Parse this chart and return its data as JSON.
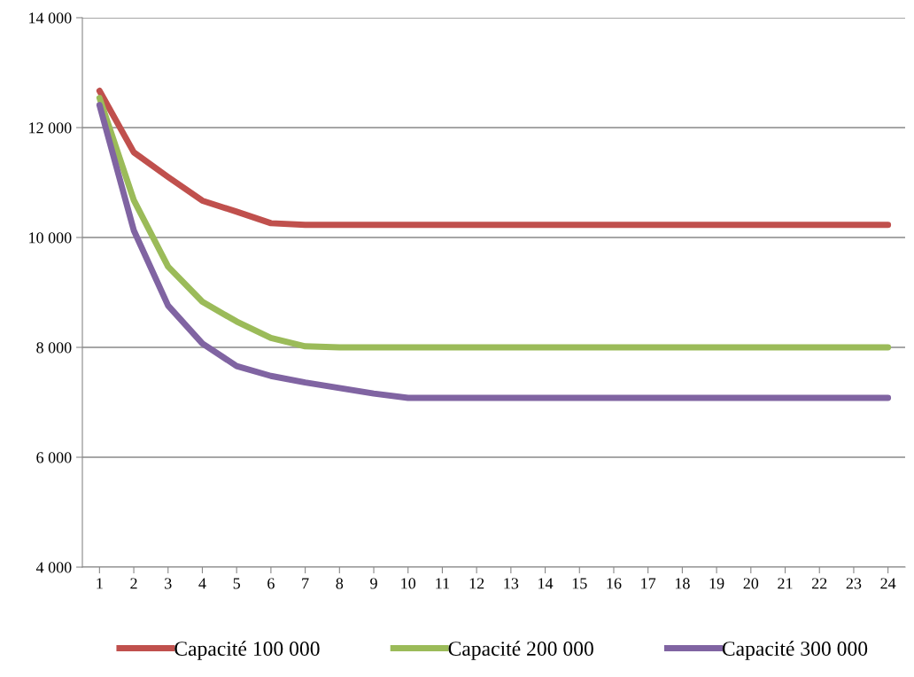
{
  "chart_data": {
    "type": "line",
    "categories": [
      "1",
      "2",
      "3",
      "4",
      "5",
      "6",
      "7",
      "8",
      "9",
      "10",
      "11",
      "12",
      "13",
      "14",
      "15",
      "16",
      "17",
      "18",
      "19",
      "20",
      "21",
      "22",
      "23",
      "24"
    ],
    "series": [
      {
        "name": "Capacité 100 000",
        "color": "#c0504d",
        "values": [
          12670,
          11550,
          11100,
          10670,
          10470,
          10260,
          10230,
          10230,
          10230,
          10230,
          10230,
          10230,
          10230,
          10230,
          10230,
          10230,
          10230,
          10230,
          10230,
          10230,
          10230,
          10230,
          10230,
          10230
        ]
      },
      {
        "name": "Capacité 200 000",
        "color": "#9bbb59",
        "values": [
          12540,
          10680,
          9470,
          8830,
          8470,
          8170,
          8020,
          8000,
          8000,
          8000,
          8000,
          8000,
          8000,
          8000,
          8000,
          8000,
          8000,
          8000,
          8000,
          8000,
          8000,
          8000,
          8000,
          8000
        ]
      },
      {
        "name": "Capacité 300 000",
        "color": "#8064a2",
        "values": [
          12410,
          10130,
          8760,
          8070,
          7660,
          7480,
          7360,
          7260,
          7160,
          7080,
          7080,
          7080,
          7080,
          7080,
          7080,
          7080,
          7080,
          7080,
          7080,
          7080,
          7080,
          7080,
          7080,
          7080
        ]
      }
    ],
    "ylim": [
      4000,
      14000
    ],
    "yticks": [
      {
        "value": 4000,
        "label": "4 000"
      },
      {
        "value": 6000,
        "label": "6 000"
      },
      {
        "value": 8000,
        "label": "8 000"
      },
      {
        "value": 10000,
        "label": "10 000"
      },
      {
        "value": 12000,
        "label": "12 000"
      },
      {
        "value": 14000,
        "label": "14 000"
      }
    ],
    "grid": "y",
    "legend": "bottom",
    "marker": "none",
    "line_style": "solid"
  }
}
